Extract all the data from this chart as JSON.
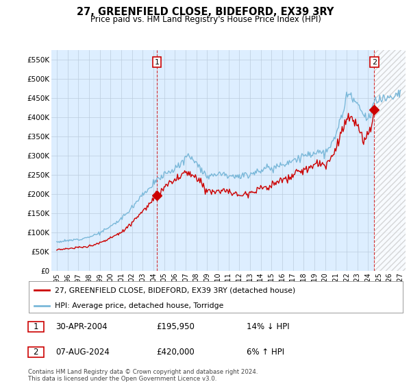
{
  "title": "27, GREENFIELD CLOSE, BIDEFORD, EX39 3RY",
  "subtitle": "Price paid vs. HM Land Registry's House Price Index (HPI)",
  "hpi_label": "HPI: Average price, detached house, Torridge",
  "property_label": "27, GREENFIELD CLOSE, BIDEFORD, EX39 3RY (detached house)",
  "transaction1_date": "30-APR-2004",
  "transaction1_price": "£195,950",
  "transaction1_hpi": "14% ↓ HPI",
  "transaction2_date": "07-AUG-2024",
  "transaction2_price": "£420,000",
  "transaction2_hpi": "6% ↑ HPI",
  "footnote": "Contains HM Land Registry data © Crown copyright and database right 2024.\nThis data is licensed under the Open Government Licence v3.0.",
  "hpi_color": "#7ab8d9",
  "property_color": "#cc0000",
  "transaction1_x": 2004.33,
  "transaction2_x": 2024.58,
  "transaction1_y": 195950,
  "transaction2_y": 420000,
  "ylim": [
    0,
    575000
  ],
  "xlim": [
    1994.5,
    2027.5
  ],
  "yticks": [
    0,
    50000,
    100000,
    150000,
    200000,
    250000,
    300000,
    350000,
    400000,
    450000,
    500000,
    550000
  ],
  "ytick_labels": [
    "£0",
    "£50K",
    "£100K",
    "£150K",
    "£200K",
    "£250K",
    "£300K",
    "£350K",
    "£400K",
    "£450K",
    "£500K",
    "£550K"
  ],
  "xticks": [
    1995,
    1996,
    1997,
    1998,
    1999,
    2000,
    2001,
    2002,
    2003,
    2004,
    2005,
    2006,
    2007,
    2008,
    2009,
    2010,
    2011,
    2012,
    2013,
    2014,
    2015,
    2016,
    2017,
    2018,
    2019,
    2020,
    2021,
    2022,
    2023,
    2024,
    2025,
    2026,
    2027
  ],
  "chart_bg_color": "#ddeeff",
  "background_color": "#ffffff",
  "grid_color": "#bbccdd",
  "hatch_color": "#cccccc"
}
